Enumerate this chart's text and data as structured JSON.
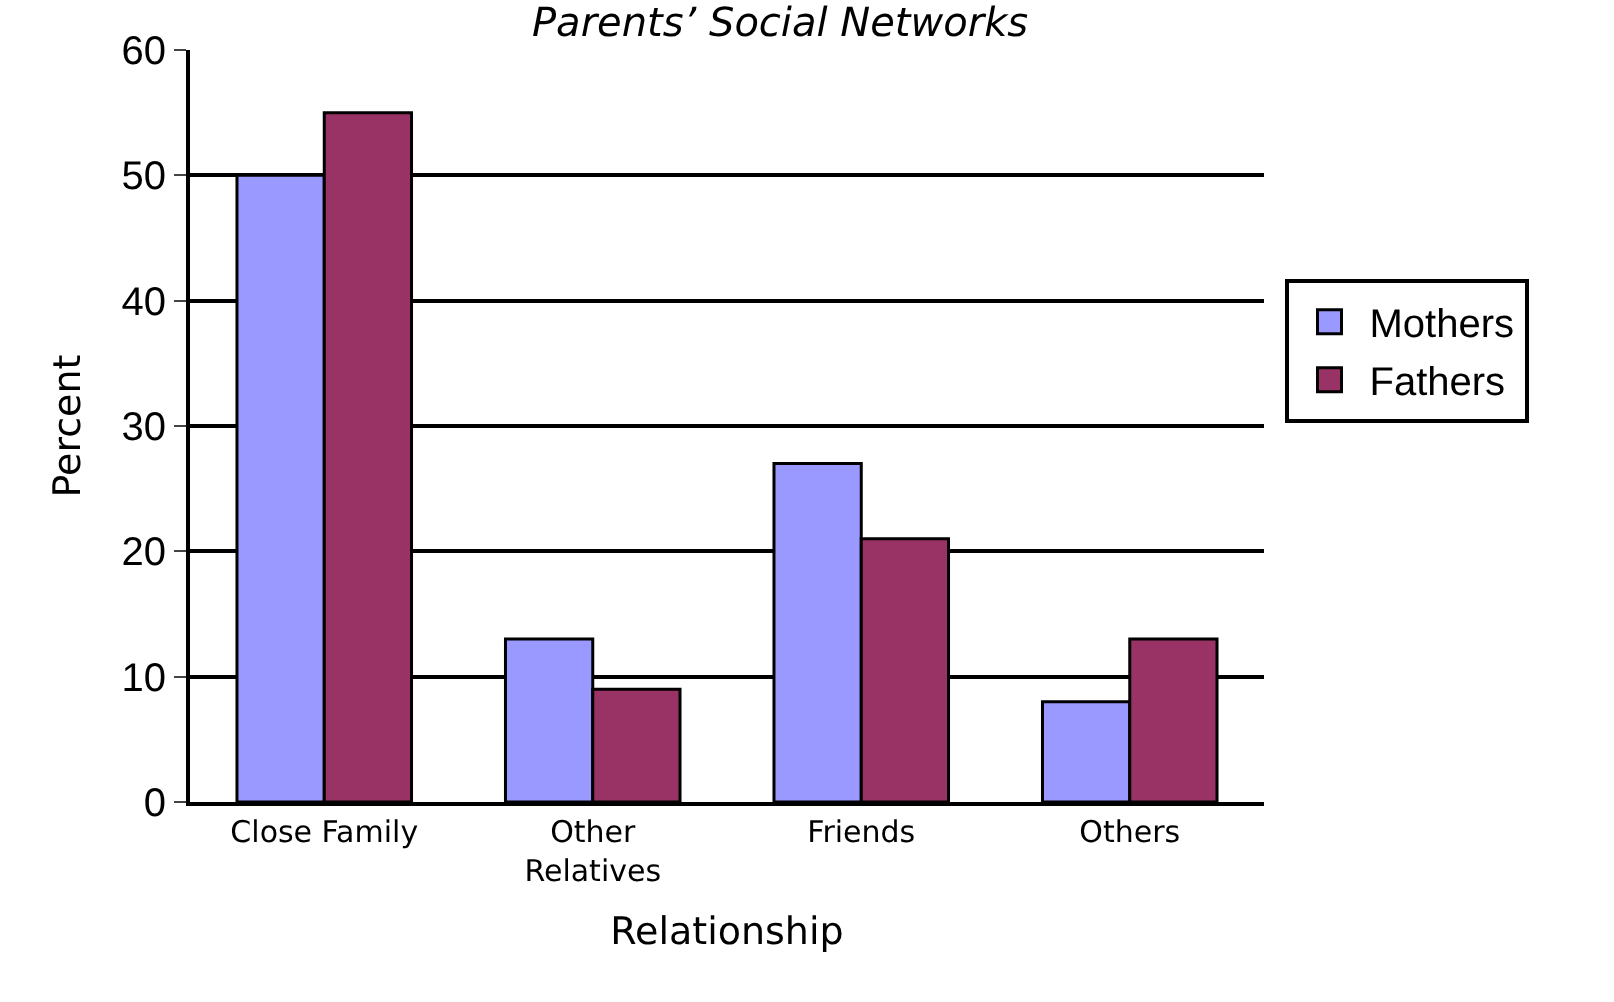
{
  "chart_data": {
    "type": "bar",
    "title": "Parents’ Social Networks",
    "xlabel": "Relationship",
    "ylabel": "Percent",
    "categories": [
      "Close Family",
      "Other Relatives",
      "Friends",
      "Others"
    ],
    "series": [
      {
        "name": "Mothers",
        "color": "#9999ff",
        "values": [
          50,
          13,
          27,
          8
        ]
      },
      {
        "name": "Fathers",
        "color": "#993366",
        "values": [
          55,
          9,
          21,
          13
        ]
      }
    ],
    "ylim": [
      0,
      60
    ],
    "yticks": [
      0,
      10,
      20,
      30,
      40,
      50,
      60
    ],
    "grid": "y",
    "legend": "right"
  }
}
